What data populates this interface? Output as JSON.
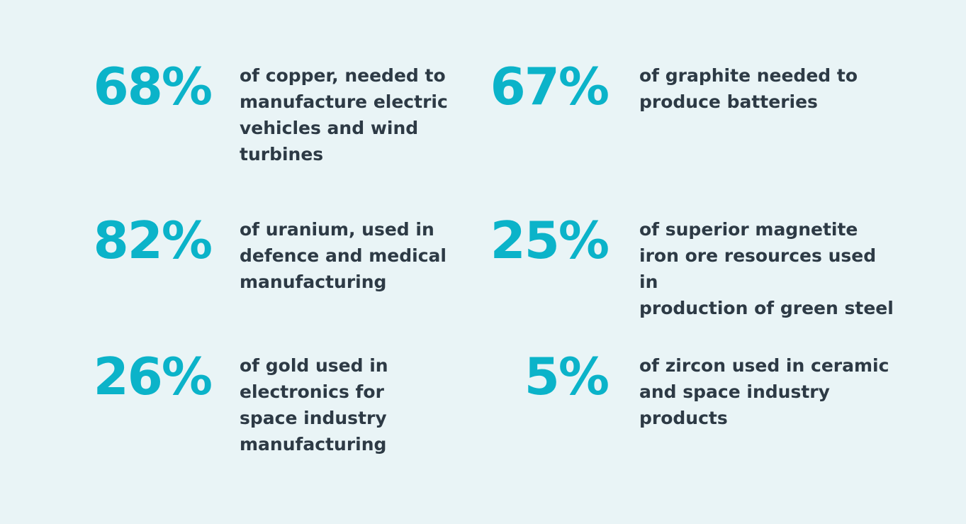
{
  "colors": {
    "background": "#e9f4f6",
    "accent": "#0bb3c9",
    "text": "#2d3a45"
  },
  "stats": [
    {
      "value": "68%",
      "description": "of copper, needed to\nmanufacture electric\nvehicles and wind\nturbines"
    },
    {
      "value": "67%",
      "description": "of graphite needed to\nproduce batteries"
    },
    {
      "value": "82%",
      "description": "of uranium, used in\ndefence and medical\nmanufacturing"
    },
    {
      "value": "25%",
      "description": "of superior magnetite\niron ore resources used in\nproduction of green steel"
    },
    {
      "value": "26%",
      "description": "of gold used in\nelectronics for\nspace industry\nmanufacturing"
    },
    {
      "value": "5%",
      "description": "of zircon used in ceramic\nand space industry\nproducts"
    }
  ]
}
